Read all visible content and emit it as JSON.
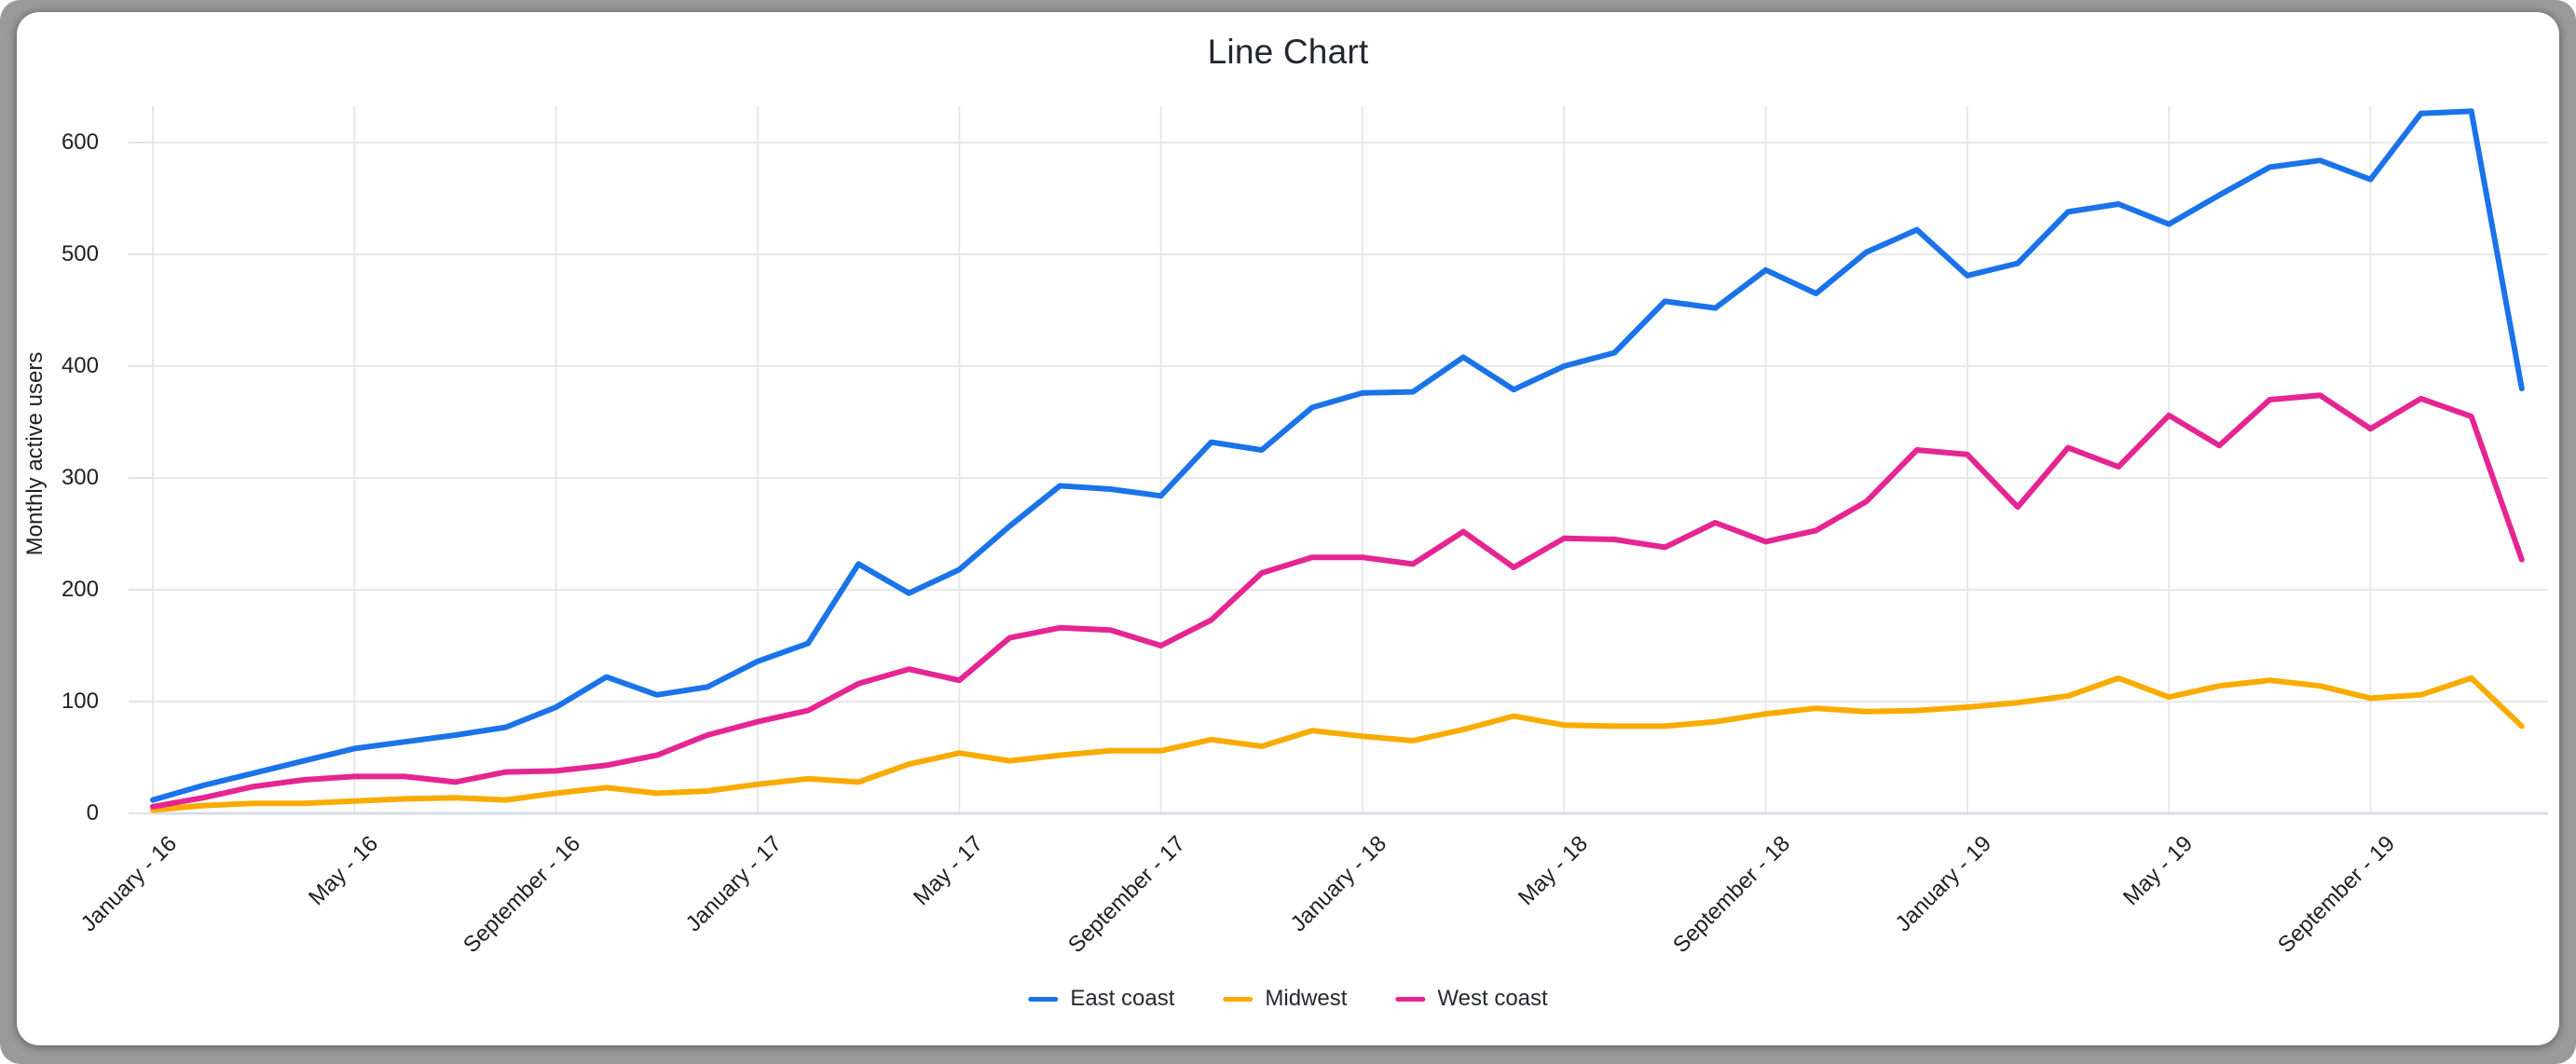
{
  "window": {
    "frame_color": "#9a9a9a",
    "card_color": "#ffffff"
  },
  "chart": {
    "title": "Line Chart",
    "y_axis_title": "Monthly active users",
    "grid_color": "#e8e8e8",
    "baseline_color": "#d7dce8",
    "tick_color": "#e2e2e2",
    "text_color": "#202124"
  },
  "chart_data": {
    "type": "line",
    "title": "Line Chart",
    "xlabel": "",
    "ylabel": "Monthly active users",
    "x_tick_labels": [
      "January - 16",
      "May - 16",
      "September - 16",
      "January - 17",
      "May - 17",
      "September - 17",
      "January - 18",
      "May - 18",
      "September - 18",
      "January - 19",
      "May - 19",
      "September - 19"
    ],
    "x_tick_every": 4,
    "points_per_series": 48,
    "y_ticks": [
      0,
      100,
      200,
      300,
      400,
      500,
      600
    ],
    "ylim": [
      0,
      630
    ],
    "grid": true,
    "legend_position": "bottom-center",
    "series": [
      {
        "name": "East coast",
        "color": "#1a73e8",
        "values": [
          12,
          25,
          36,
          47,
          58,
          64,
          70,
          77,
          95,
          122,
          106,
          113,
          136,
          152,
          223,
          197,
          218,
          257,
          293,
          290,
          284,
          332,
          325,
          363,
          376,
          377,
          408,
          379,
          400,
          412,
          458,
          452,
          486,
          465,
          502,
          522,
          481,
          492,
          538,
          545,
          527,
          553,
          578,
          584,
          567,
          626,
          628,
          380
        ]
      },
      {
        "name": "Midwest",
        "color": "#f9ab00",
        "values": [
          3,
          7,
          9,
          9,
          11,
          13,
          14,
          12,
          18,
          23,
          18,
          20,
          26,
          31,
          28,
          44,
          54,
          47,
          52,
          56,
          56,
          66,
          60,
          74,
          69,
          65,
          75,
          87,
          79,
          78,
          78,
          82,
          89,
          94,
          91,
          92,
          95,
          99,
          105,
          121,
          104,
          114,
          119,
          114,
          103,
          106,
          121,
          78
        ]
      },
      {
        "name": "West coast",
        "color": "#e52592",
        "values": [
          6,
          14,
          24,
          30,
          33,
          33,
          28,
          37,
          38,
          43,
          52,
          70,
          82,
          92,
          116,
          129,
          119,
          157,
          166,
          164,
          150,
          173,
          215,
          229,
          229,
          223,
          252,
          220,
          246,
          245,
          238,
          260,
          243,
          253,
          279,
          325,
          321,
          274,
          327,
          310,
          356,
          329,
          370,
          374,
          344,
          371,
          355,
          227
        ]
      }
    ]
  }
}
